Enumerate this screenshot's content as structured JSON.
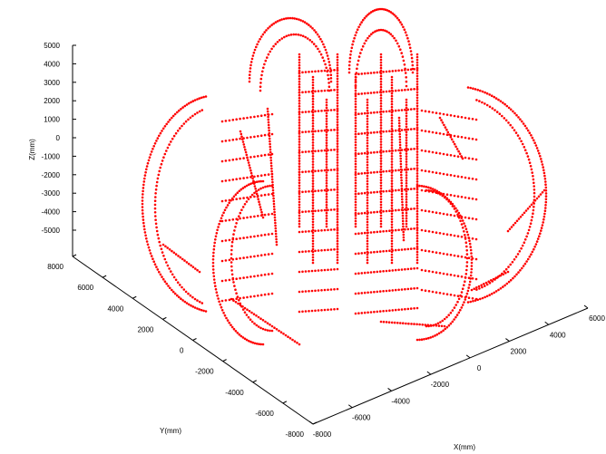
{
  "chart_data": {
    "type": "scatter",
    "projection": "3d",
    "title": "",
    "xlabel": "X(mm)",
    "ylabel": "Y(mm)",
    "zlabel": "Z(mm)",
    "xlim": [
      -8000,
      6000
    ],
    "ylim": [
      -8000,
      8000
    ],
    "zlim": [
      -5000,
      5000
    ],
    "x_ticks": [
      -8000,
      -6000,
      -4000,
      -2000,
      0,
      2000,
      4000,
      6000
    ],
    "y_ticks": [
      8000,
      6000,
      4000,
      2000,
      0,
      -2000,
      -4000,
      -6000,
      -8000
    ],
    "z_ticks": [
      5000,
      4000,
      3000,
      2000,
      1000,
      0,
      -1000,
      -2000,
      -3000,
      -4000,
      -5000
    ],
    "x_tick_labels": [
      "-8000",
      "-6000",
      "-4000",
      "-2000",
      "0",
      "2000",
      "4000",
      "6000"
    ],
    "y_tick_labels": [
      "8000",
      "6000",
      "4000",
      "2000",
      "0",
      "-2000",
      "-4000",
      "-6000",
      "-8000"
    ],
    "z_tick_labels": [
      "5000",
      "4000",
      "3000",
      "2000",
      "1000",
      "0",
      "-1000",
      "-2000",
      "-3000",
      "-4000",
      "-5000"
    ],
    "grid": false,
    "marker_color": "#ff0000",
    "marker": "dot",
    "description": ""
  }
}
